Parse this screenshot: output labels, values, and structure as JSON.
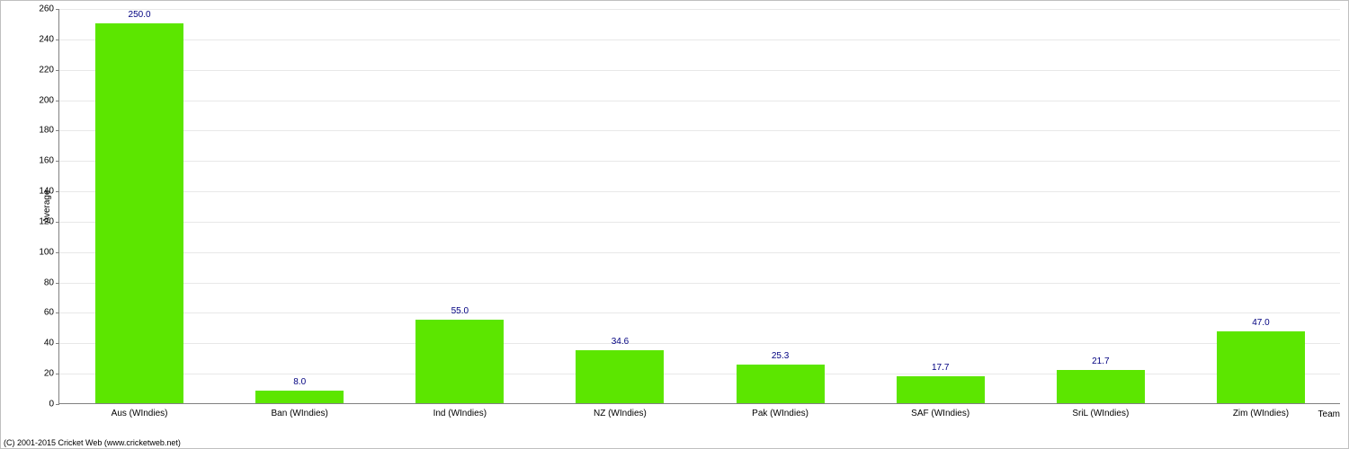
{
  "chart": {
    "type": "bar",
    "ylabel": "Average",
    "xlabel": "Team",
    "ylim": [
      0,
      260
    ],
    "ytick_step": 20,
    "bar_color": "#5CE600",
    "value_label_color": "#000080",
    "tick_label_color": "#000000",
    "grid_color": "#e8e8e8",
    "axis_color": "#808080",
    "background_color": "#ffffff",
    "bar_width_ratio": 0.55,
    "label_fontsize": 10,
    "value_fontsize": 10,
    "categories": [
      "Aus (WIndies)",
      "Ban (WIndies)",
      "Ind (WIndies)",
      "NZ (WIndies)",
      "Pak (WIndies)",
      "SAF (WIndies)",
      "SriL (WIndies)",
      "Zim (WIndies)"
    ],
    "values": [
      250.0,
      8.0,
      55.0,
      34.6,
      25.3,
      17.7,
      21.7,
      47.0
    ],
    "value_labels": [
      "250.0",
      "8.0",
      "55.0",
      "34.6",
      "25.3",
      "17.7",
      "21.7",
      "47.0"
    ]
  },
  "copyright": "(C) 2001-2015 Cricket Web (www.cricketweb.net)"
}
